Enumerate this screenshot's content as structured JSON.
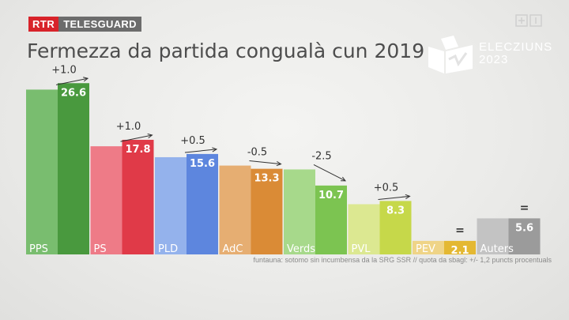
{
  "header": {
    "brand_rtr": "RTR",
    "brand_show": "TELESGUARD",
    "title": "Fermezza da partida congualà cun 2019",
    "election_line1": "ELECZIUNS",
    "election_line2": "2023",
    "source": "funtauna: sotomo sin incumbensa da la SRG SSR  //  quota da sbagl: +/- 1,2 puncts procentuals"
  },
  "chart_data": {
    "type": "bar",
    "categories": [
      "PPS",
      "PS",
      "PLD",
      "AdC",
      "Verds",
      "PVL",
      "PEV",
      "Auters"
    ],
    "series": [
      {
        "values": [
          25.6,
          16.8,
          15.1,
          13.8,
          13.2,
          7.8,
          2.1,
          5.6
        ]
      },
      {
        "values": [
          26.6,
          17.8,
          15.6,
          13.3,
          10.7,
          8.3,
          2.1,
          5.6
        ]
      }
    ],
    "value_labels": [
      "26.6",
      "17.8",
      "15.6",
      "13.3",
      "10.7",
      "8.3",
      "2.1",
      "5.6"
    ],
    "changes": [
      "+1.0",
      "+1.0",
      "+0.5",
      "-0.5",
      "-2.5",
      "+0.5",
      "=",
      "="
    ],
    "ylim": [
      0,
      27
    ],
    "colors": {
      "current": [
        "#49993e",
        "#e03a48",
        "#5d86de",
        "#da8b36",
        "#7cc451",
        "#c6d84a",
        "#e4b832",
        "#9b9b9b"
      ],
      "previous": [
        "#79bd6f",
        "#ee7b87",
        "#94b2ec",
        "#e6ae72",
        "#a7d98b",
        "#dce891",
        "#efd487",
        "#c3c3c3"
      ]
    }
  }
}
